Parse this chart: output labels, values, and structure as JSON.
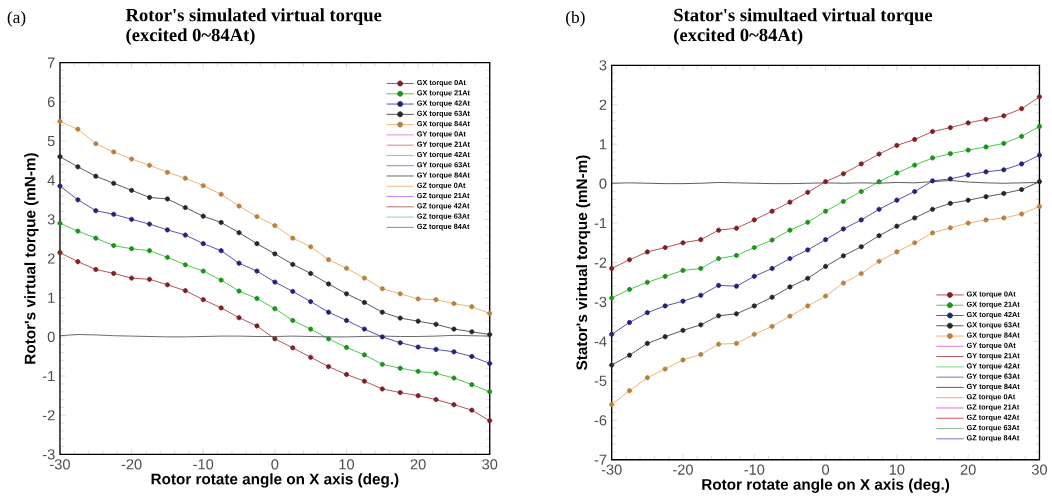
{
  "chart_data": [
    {
      "type": "line",
      "title": "Rotor's simulated virtual torque",
      "subtitle": "(excited 0~84At)",
      "xlabel": "Rotor rotate angle on X axis (deg.)",
      "ylabel": "Rotor's virtual torque (mN-m)",
      "annotations": [
        "(a)"
      ],
      "x": [
        -30,
        -27.5,
        -25,
        -22.5,
        -20,
        -17.5,
        -15,
        -12.5,
        -10,
        -7.5,
        -5,
        -2.5,
        0,
        2.5,
        5,
        7.5,
        10,
        12.5,
        15,
        17.5,
        20,
        22.5,
        25,
        27.5,
        30
      ],
      "xlim": [
        -30,
        30
      ],
      "ylim": [
        -3,
        7
      ],
      "xticks": [
        -30,
        -20,
        -10,
        0,
        10,
        20,
        30
      ],
      "yticks": [
        -3,
        -2,
        -1,
        0,
        1,
        2,
        3,
        4,
        5,
        6,
        7
      ],
      "legend": "top right",
      "marker": "none",
      "series": [
        {
          "name": "GX torque 0At",
          "color": "#a02830",
          "marker": "circle",
          "values": [
            2.15,
            1.92,
            1.72,
            1.62,
            1.5,
            1.47,
            1.33,
            1.18,
            0.95,
            0.74,
            0.49,
            0.28,
            -0.05,
            -0.28,
            -0.52,
            -0.76,
            -0.96,
            -1.13,
            -1.33,
            -1.42,
            -1.5,
            -1.6,
            -1.73,
            -1.87,
            -2.14
          ]
        },
        {
          "name": "GX torque 21At",
          "color": "#22b822",
          "marker": "circle",
          "values": [
            2.9,
            2.7,
            2.52,
            2.33,
            2.25,
            2.2,
            2.03,
            1.84,
            1.68,
            1.45,
            1.17,
            0.98,
            0.72,
            0.42,
            0.2,
            -0.05,
            -0.27,
            -0.46,
            -0.7,
            -0.8,
            -0.88,
            -0.93,
            -1.05,
            -1.22,
            -1.4
          ]
        },
        {
          "name": "GX torque 42At",
          "color": "#2a2a9a",
          "marker": "circle",
          "values": [
            3.85,
            3.5,
            3.22,
            3.13,
            3.0,
            2.88,
            2.73,
            2.6,
            2.38,
            2.2,
            1.88,
            1.68,
            1.4,
            1.16,
            0.9,
            0.63,
            0.42,
            0.2,
            0.0,
            -0.15,
            -0.26,
            -0.32,
            -0.38,
            -0.5,
            -0.68
          ]
        },
        {
          "name": "GX torque 63At",
          "color": "#303030",
          "marker": "circle",
          "values": [
            4.6,
            4.34,
            4.1,
            3.92,
            3.74,
            3.56,
            3.52,
            3.3,
            3.08,
            2.92,
            2.66,
            2.38,
            2.12,
            1.85,
            1.62,
            1.35,
            1.1,
            0.88,
            0.63,
            0.48,
            0.4,
            0.32,
            0.2,
            0.13,
            0.06
          ]
        },
        {
          "name": "GX torque 84At",
          "color": "#e8a050",
          "marker": "circle",
          "values": [
            5.5,
            5.3,
            4.93,
            4.72,
            4.54,
            4.38,
            4.2,
            4.05,
            3.86,
            3.64,
            3.34,
            3.07,
            2.84,
            2.52,
            2.3,
            1.97,
            1.75,
            1.5,
            1.23,
            1.1,
            0.97,
            0.95,
            0.85,
            0.77,
            0.6
          ]
        },
        {
          "name": "GY torque 0At",
          "color": "#ee66ee",
          "values": [
            null,
            null,
            null,
            null,
            null,
            null,
            null,
            null,
            null,
            null,
            null,
            null,
            null,
            null,
            null,
            null,
            null,
            null,
            null,
            null,
            null,
            null,
            null,
            null,
            null
          ]
        },
        {
          "name": "GY torque 21At",
          "color": "#ee5555",
          "values": [
            null,
            null,
            null,
            null,
            null,
            null,
            null,
            null,
            null,
            null,
            null,
            null,
            null,
            null,
            null,
            null,
            null,
            null,
            null,
            null,
            null,
            null,
            null,
            null,
            null
          ]
        },
        {
          "name": "GY torque 42At",
          "color": "#66bb77",
          "values": [
            null,
            null,
            null,
            null,
            null,
            null,
            null,
            null,
            null,
            null,
            null,
            null,
            null,
            null,
            null,
            null,
            null,
            null,
            null,
            null,
            null,
            null,
            null,
            null,
            null
          ]
        },
        {
          "name": "GY torque 63At",
          "color": "#6666cc",
          "values": [
            null,
            null,
            null,
            null,
            null,
            null,
            null,
            null,
            null,
            null,
            null,
            null,
            null,
            null,
            null,
            null,
            null,
            null,
            null,
            null,
            null,
            null,
            null,
            null,
            null
          ]
        },
        {
          "name": "GY torque 84At",
          "color": "#444444",
          "values": [
            0.03,
            0.06,
            0.05,
            0.03,
            0.02,
            0.01,
            0,
            0,
            0.01,
            0.02,
            0.02,
            0.01,
            0.01,
            0.02,
            0.01,
            0,
            0,
            0.01,
            0.02,
            0.01,
            0.01,
            0.02,
            0.04,
            0.03,
            0.02
          ]
        },
        {
          "name": "GZ torque 0At",
          "color": "#f0b060",
          "values": [
            null,
            null,
            null,
            null,
            null,
            null,
            null,
            null,
            null,
            null,
            null,
            null,
            null,
            null,
            null,
            null,
            null,
            null,
            null,
            null,
            null,
            null,
            null,
            null,
            null
          ]
        },
        {
          "name": "GZ torque 21At",
          "color": "#bb66ee",
          "values": [
            null,
            null,
            null,
            null,
            null,
            null,
            null,
            null,
            null,
            null,
            null,
            null,
            null,
            null,
            null,
            null,
            null,
            null,
            null,
            null,
            null,
            null,
            null,
            null,
            null
          ]
        },
        {
          "name": "GZ torque 42At",
          "color": "#aa4444",
          "values": [
            null,
            null,
            null,
            null,
            null,
            null,
            null,
            null,
            null,
            null,
            null,
            null,
            null,
            null,
            null,
            null,
            null,
            null,
            null,
            null,
            null,
            null,
            null,
            null,
            null
          ]
        },
        {
          "name": "GZ torque 63At",
          "color": "#66cc99",
          "values": [
            null,
            null,
            null,
            null,
            null,
            null,
            null,
            null,
            null,
            null,
            null,
            null,
            null,
            null,
            null,
            null,
            null,
            null,
            null,
            null,
            null,
            null,
            null,
            null,
            null
          ]
        },
        {
          "name": "GZ torque 84At",
          "color": "#6a5fb0",
          "values": [
            null,
            null,
            null,
            null,
            null,
            null,
            null,
            null,
            null,
            null,
            null,
            null,
            null,
            null,
            null,
            null,
            null,
            null,
            null,
            null,
            null,
            null,
            null,
            null,
            null
          ]
        }
      ]
    },
    {
      "type": "line",
      "title": "Stator's simultaed virtual torque",
      "subtitle": "(excited 0~84At)",
      "xlabel": "Rotor rotate angle on X axis (deg.)",
      "ylabel": "Stator's virtual torque (mN-m)",
      "annotations": [
        "(b)"
      ],
      "x": [
        -30,
        -27.5,
        -25,
        -22.5,
        -20,
        -17.5,
        -15,
        -12.5,
        -10,
        -7.5,
        -5,
        -2.5,
        0,
        2.5,
        5,
        7.5,
        10,
        12.5,
        15,
        17.5,
        20,
        22.5,
        25,
        27.5,
        30
      ],
      "xlim": [
        -30,
        30
      ],
      "ylim": [
        -7,
        3
      ],
      "xticks": [
        -30,
        -20,
        -10,
        0,
        10,
        20,
        30
      ],
      "yticks": [
        -7,
        -6,
        -5,
        -4,
        -3,
        -2,
        -1,
        0,
        1,
        2,
        3
      ],
      "legend": "bottom right",
      "marker": "none",
      "series": [
        {
          "name": "GX torque 0At",
          "color": "#a02830",
          "marker": "circle",
          "values": [
            -2.15,
            -1.93,
            -1.73,
            -1.62,
            -1.5,
            -1.42,
            -1.18,
            -1.13,
            -0.92,
            -0.7,
            -0.47,
            -0.22,
            0.05,
            0.25,
            0.5,
            0.75,
            0.97,
            1.12,
            1.32,
            1.42,
            1.54,
            1.63,
            1.72,
            1.9,
            2.2
          ]
        },
        {
          "name": "GX torque 21At",
          "color": "#22b822",
          "marker": "circle",
          "values": [
            -2.9,
            -2.68,
            -2.5,
            -2.35,
            -2.2,
            -2.15,
            -1.9,
            -1.82,
            -1.62,
            -1.43,
            -1.18,
            -0.98,
            -0.7,
            -0.45,
            -0.2,
            0.05,
            0.27,
            0.47,
            0.65,
            0.76,
            0.85,
            0.93,
            1.02,
            1.2,
            1.45
          ]
        },
        {
          "name": "GX torque 42At",
          "color": "#2a2a9a",
          "marker": "circle",
          "values": [
            -3.82,
            -3.52,
            -3.27,
            -3.1,
            -2.98,
            -2.83,
            -2.58,
            -2.6,
            -2.35,
            -2.15,
            -1.9,
            -1.68,
            -1.42,
            -1.15,
            -0.92,
            -0.65,
            -0.42,
            -0.2,
            0.07,
            0.12,
            0.22,
            0.3,
            0.35,
            0.5,
            0.72
          ]
        },
        {
          "name": "GX torque 63At",
          "color": "#303030",
          "marker": "circle",
          "values": [
            -4.6,
            -4.35,
            -4.05,
            -3.88,
            -3.72,
            -3.58,
            -3.35,
            -3.3,
            -3.1,
            -2.88,
            -2.62,
            -2.4,
            -2.1,
            -1.83,
            -1.6,
            -1.32,
            -1.08,
            -0.87,
            -0.65,
            -0.5,
            -0.42,
            -0.33,
            -0.25,
            -0.15,
            0.05
          ]
        },
        {
          "name": "GX torque 84At",
          "color": "#e8a050",
          "marker": "circle",
          "values": [
            -5.6,
            -5.25,
            -4.92,
            -4.7,
            -4.47,
            -4.33,
            -4.07,
            -4.05,
            -3.82,
            -3.62,
            -3.36,
            -3.1,
            -2.85,
            -2.52,
            -2.28,
            -1.97,
            -1.73,
            -1.5,
            -1.25,
            -1.12,
            -1.0,
            -0.92,
            -0.87,
            -0.77,
            -0.58
          ]
        },
        {
          "name": "GY torque 0At",
          "color": "#dd55dd",
          "values": [
            null,
            null,
            null,
            null,
            null,
            null,
            null,
            null,
            null,
            null,
            null,
            null,
            null,
            null,
            null,
            null,
            null,
            null,
            null,
            null,
            null,
            null,
            null,
            null,
            null
          ]
        },
        {
          "name": "GY torque 21At",
          "color": "#882233",
          "values": [
            null,
            null,
            null,
            null,
            null,
            null,
            null,
            null,
            null,
            null,
            null,
            null,
            null,
            null,
            null,
            null,
            null,
            null,
            null,
            null,
            null,
            null,
            null,
            null,
            null
          ]
        },
        {
          "name": "GY torque 42At",
          "color": "#55cc66",
          "values": [
            null,
            null,
            null,
            null,
            null,
            null,
            null,
            null,
            null,
            null,
            null,
            null,
            null,
            null,
            null,
            null,
            null,
            null,
            null,
            null,
            null,
            null,
            null,
            null,
            null
          ]
        },
        {
          "name": "GY torque 63At",
          "color": "#555599",
          "values": [
            null,
            null,
            null,
            null,
            null,
            null,
            null,
            null,
            null,
            null,
            null,
            null,
            null,
            null,
            null,
            null,
            null,
            null,
            null,
            null,
            null,
            null,
            null,
            null,
            null
          ]
        },
        {
          "name": "GY torque 84At",
          "color": "#333333",
          "values": [
            0.01,
            0.02,
            0.01,
            0,
            0,
            0.01,
            0.03,
            0.02,
            0.01,
            0,
            0,
            0.01,
            0.02,
            0.01,
            0.02,
            0.01,
            0.03,
            0.02,
            0.05,
            0.08,
            0.04,
            0.02,
            0.01,
            0.02,
            0.03
          ]
        },
        {
          "name": "GZ torque 0At",
          "color": "#f09050",
          "values": [
            null,
            null,
            null,
            null,
            null,
            null,
            null,
            null,
            null,
            null,
            null,
            null,
            null,
            null,
            null,
            null,
            null,
            null,
            null,
            null,
            null,
            null,
            null,
            null,
            null
          ]
        },
        {
          "name": "GZ torque 21At",
          "color": "#dd44ee",
          "values": [
            null,
            null,
            null,
            null,
            null,
            null,
            null,
            null,
            null,
            null,
            null,
            null,
            null,
            null,
            null,
            null,
            null,
            null,
            null,
            null,
            null,
            null,
            null,
            null,
            null
          ]
        },
        {
          "name": "GZ torque 42At",
          "color": "#cc2233",
          "values": [
            null,
            null,
            null,
            null,
            null,
            null,
            null,
            null,
            null,
            null,
            null,
            null,
            null,
            null,
            null,
            null,
            null,
            null,
            null,
            null,
            null,
            null,
            null,
            null,
            null
          ]
        },
        {
          "name": "GZ torque 63At",
          "color": "#77aa77",
          "values": [
            null,
            null,
            null,
            null,
            null,
            null,
            null,
            null,
            null,
            null,
            null,
            null,
            null,
            null,
            null,
            null,
            null,
            null,
            null,
            null,
            null,
            null,
            null,
            null,
            null
          ]
        },
        {
          "name": "GZ torque 84At",
          "color": "#5555aa",
          "values": [
            null,
            null,
            null,
            null,
            null,
            null,
            null,
            null,
            null,
            null,
            null,
            null,
            null,
            null,
            null,
            null,
            null,
            null,
            null,
            null,
            null,
            null,
            null,
            null,
            null
          ]
        }
      ]
    }
  ]
}
